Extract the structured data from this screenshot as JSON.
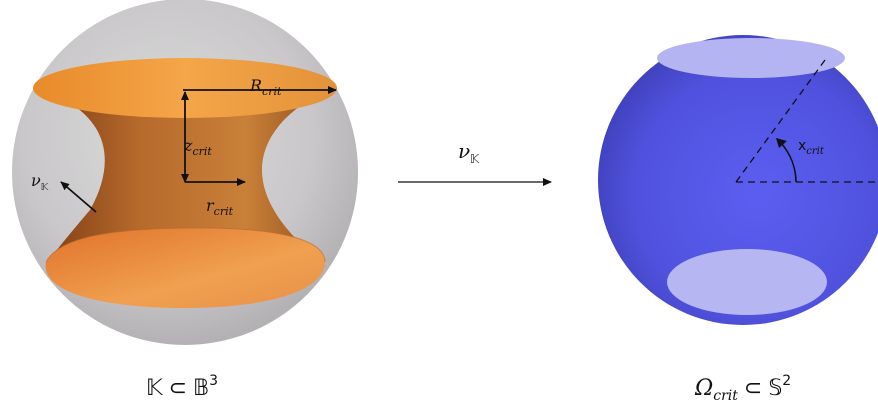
{
  "left_panel": {
    "R_label": {
      "base": "R",
      "sub": "crit"
    },
    "z_label": {
      "base": "z",
      "sub": "crit"
    },
    "r_label": {
      "base": "r",
      "sub": "crit"
    },
    "nu_label": {
      "base": "ν",
      "sub": "𝕂"
    },
    "caption": {
      "a": "𝕂",
      "op": "⊂",
      "b": "𝔹",
      "sup": "3"
    }
  },
  "arrow_label": {
    "base": "ν",
    "sub": "𝕂"
  },
  "right_panel": {
    "angle_label": {
      "base": "x",
      "sub": "crit"
    },
    "caption": {
      "a": "Ω",
      "a_sub": "crit",
      "op": "⊂",
      "b": "𝕊",
      "sup": "2"
    }
  },
  "colors": {
    "ball": "#c8c6c8",
    "catenoid_dark": "#8a4a1a",
    "catenoid_light": "#f0a040",
    "sphere_blue": "#5a5ce6",
    "cap": "#b8b8f0"
  }
}
